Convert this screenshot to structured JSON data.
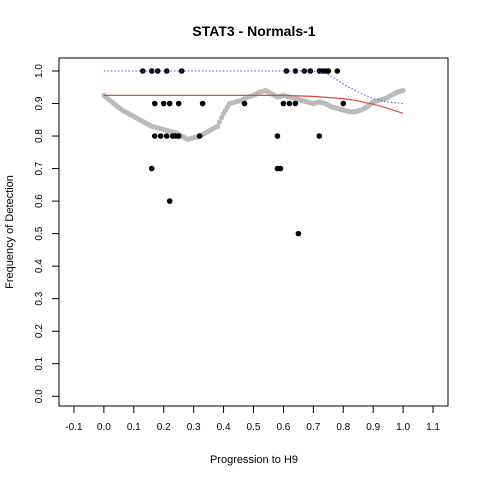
{
  "chart_data": {
    "type": "scatter",
    "title": "STAT3 - Normals-1",
    "xlabel": "Progression to H9",
    "ylabel": "Frequency of Detection",
    "xlim": [
      -0.15,
      1.15
    ],
    "ylim": [
      -0.03,
      1.04
    ],
    "xticks": [
      -0.1,
      0.0,
      0.1,
      0.2,
      0.3,
      0.4,
      0.5,
      0.6,
      0.7,
      0.8,
      0.9,
      1.0,
      1.1
    ],
    "xtick_labels": [
      "-0.1",
      "0.0",
      "0.1",
      "0.2",
      "0.3",
      "0.4",
      "0.5",
      "0.6",
      "0.7",
      "0.8",
      "0.9",
      "1.0",
      "1.1"
    ],
    "yticks": [
      0.0,
      0.1,
      0.2,
      0.3,
      0.4,
      0.5,
      0.6,
      0.7,
      0.8,
      0.9,
      1.0
    ],
    "ytick_labels": [
      "0.0",
      "0.1",
      "0.2",
      "0.3",
      "0.4",
      "0.5",
      "0.6",
      "0.7",
      "0.8",
      "0.9",
      "1.0"
    ],
    "grid": false,
    "series": [
      {
        "style": "black-points",
        "color": "#000000",
        "points": [
          [
            0.13,
            1.0
          ],
          [
            0.16,
            1.0
          ],
          [
            0.18,
            1.0
          ],
          [
            0.21,
            1.0
          ],
          [
            0.26,
            1.0
          ],
          [
            0.61,
            1.0
          ],
          [
            0.64,
            1.0
          ],
          [
            0.67,
            1.0
          ],
          [
            0.69,
            1.0
          ],
          [
            0.72,
            1.0
          ],
          [
            0.73,
            1.0
          ],
          [
            0.74,
            1.0
          ],
          [
            0.75,
            1.0
          ],
          [
            0.78,
            1.0
          ],
          [
            0.17,
            0.9
          ],
          [
            0.2,
            0.9
          ],
          [
            0.22,
            0.9
          ],
          [
            0.25,
            0.9
          ],
          [
            0.33,
            0.9
          ],
          [
            0.47,
            0.9
          ],
          [
            0.6,
            0.9
          ],
          [
            0.62,
            0.9
          ],
          [
            0.64,
            0.9
          ],
          [
            0.8,
            0.9
          ],
          [
            0.17,
            0.8
          ],
          [
            0.19,
            0.8
          ],
          [
            0.21,
            0.8
          ],
          [
            0.23,
            0.8
          ],
          [
            0.24,
            0.8
          ],
          [
            0.25,
            0.8
          ],
          [
            0.32,
            0.8
          ],
          [
            0.58,
            0.8
          ],
          [
            0.72,
            0.8
          ],
          [
            0.16,
            0.7
          ],
          [
            0.58,
            0.7
          ],
          [
            0.59,
            0.7
          ],
          [
            0.22,
            0.6
          ],
          [
            0.65,
            0.5
          ]
        ]
      },
      {
        "style": "gray-running-mean",
        "color": "#bbbbbb",
        "points": [
          [
            0.0,
            0.925
          ],
          [
            0.02,
            0.91
          ],
          [
            0.04,
            0.895
          ],
          [
            0.06,
            0.88
          ],
          [
            0.08,
            0.87
          ],
          [
            0.1,
            0.86
          ],
          [
            0.12,
            0.85
          ],
          [
            0.14,
            0.84
          ],
          [
            0.16,
            0.83
          ],
          [
            0.18,
            0.825
          ],
          [
            0.2,
            0.82
          ],
          [
            0.22,
            0.815
          ],
          [
            0.24,
            0.81
          ],
          [
            0.26,
            0.8
          ],
          [
            0.28,
            0.79
          ],
          [
            0.3,
            0.795
          ],
          [
            0.32,
            0.8
          ],
          [
            0.34,
            0.81
          ],
          [
            0.36,
            0.82
          ],
          [
            0.38,
            0.83
          ],
          [
            0.4,
            0.87
          ],
          [
            0.42,
            0.9
          ],
          [
            0.44,
            0.905
          ],
          [
            0.46,
            0.91
          ],
          [
            0.48,
            0.92
          ],
          [
            0.5,
            0.925
          ],
          [
            0.52,
            0.935
          ],
          [
            0.54,
            0.94
          ],
          [
            0.56,
            0.93
          ],
          [
            0.58,
            0.92
          ],
          [
            0.6,
            0.925
          ],
          [
            0.62,
            0.92
          ],
          [
            0.64,
            0.915
          ],
          [
            0.66,
            0.91
          ],
          [
            0.68,
            0.905
          ],
          [
            0.7,
            0.9
          ],
          [
            0.72,
            0.905
          ],
          [
            0.74,
            0.9
          ],
          [
            0.76,
            0.89
          ],
          [
            0.78,
            0.885
          ],
          [
            0.8,
            0.88
          ],
          [
            0.82,
            0.875
          ],
          [
            0.84,
            0.875
          ],
          [
            0.86,
            0.88
          ],
          [
            0.88,
            0.89
          ],
          [
            0.9,
            0.905
          ],
          [
            0.92,
            0.91
          ],
          [
            0.94,
            0.915
          ],
          [
            0.96,
            0.925
          ],
          [
            0.98,
            0.935
          ],
          [
            1.0,
            0.94
          ]
        ]
      },
      {
        "style": "red-fit-line",
        "color": "#e8483a",
        "points": [
          [
            0.0,
            0.925
          ],
          [
            0.2,
            0.925
          ],
          [
            0.4,
            0.925
          ],
          [
            0.6,
            0.925
          ],
          [
            0.7,
            0.922
          ],
          [
            0.8,
            0.915
          ],
          [
            0.85,
            0.908
          ],
          [
            0.9,
            0.898
          ],
          [
            0.95,
            0.885
          ],
          [
            1.0,
            0.87
          ]
        ]
      },
      {
        "style": "blue-dotted-line",
        "color": "#4f4ff0",
        "points": [
          [
            0.0,
            1.0
          ],
          [
            0.5,
            1.0
          ],
          [
            0.7,
            1.0
          ],
          [
            0.75,
            0.99
          ],
          [
            0.8,
            0.96
          ],
          [
            0.85,
            0.935
          ],
          [
            0.9,
            0.915
          ],
          [
            0.95,
            0.905
          ],
          [
            1.0,
            0.9
          ]
        ]
      }
    ]
  }
}
